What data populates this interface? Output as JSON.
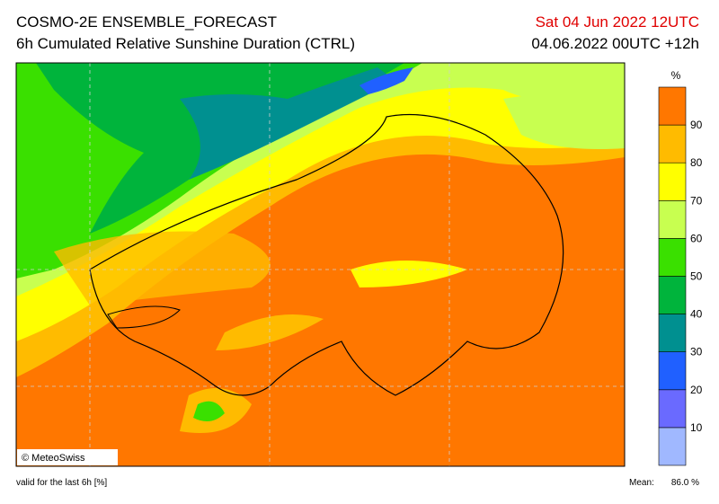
{
  "header": {
    "title": "COSMO-2E ENSEMBLE_FORECAST",
    "subtitle": "6h Cumulated Relative Sunshine Duration (CTRL)",
    "valid_time": "Sat 04 Jun 2022 12UTC",
    "run": "04.06.2022 00UTC +12h"
  },
  "map": {
    "copyright": "© MeteoSwiss"
  },
  "legend": {
    "unit": "%",
    "ticks": [
      10,
      20,
      30,
      40,
      50,
      60,
      70,
      80,
      90
    ],
    "colors": [
      "#a0b8ff",
      "#6a6aff",
      "#2060ff",
      "#009090",
      "#00b43c",
      "#3ae000",
      "#c8ff50",
      "#ffff00",
      "#ffbb00",
      "#ff7700"
    ]
  },
  "footer": {
    "note": "valid for the last 6h [%]",
    "mean_label": "Mean:",
    "mean_value": "86.0 %"
  }
}
